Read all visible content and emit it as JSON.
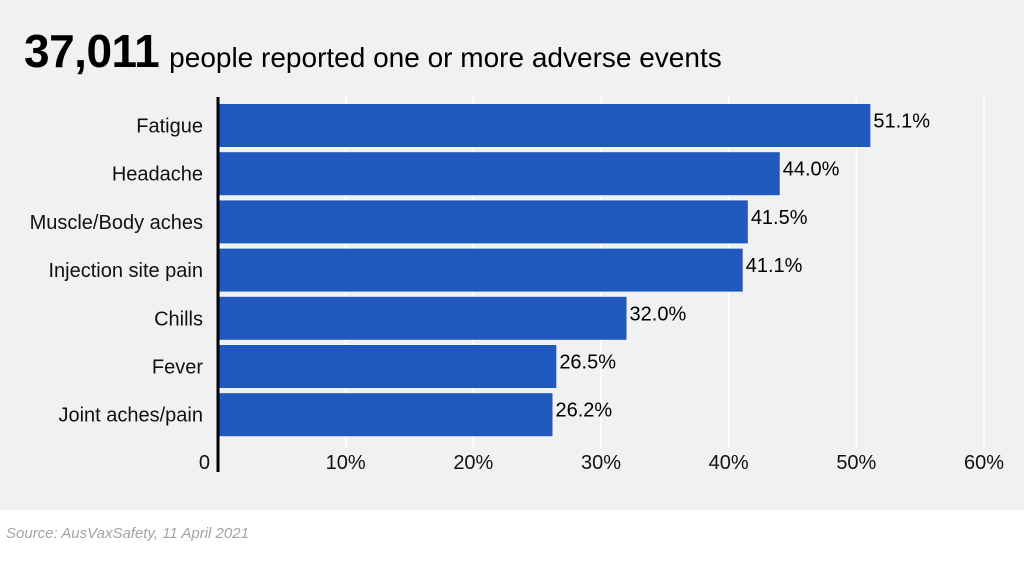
{
  "headline": {
    "number": "37,011",
    "text": "people reported one or more adverse events"
  },
  "source": "Source: AusVaxSafety, 11 April 2021",
  "colors": {
    "bar": "#1f59bd",
    "background": "#f0f1f3",
    "grid": "#ffffff",
    "axis": "#000000",
    "text": "#111111"
  },
  "chart_data": {
    "type": "bar",
    "orientation": "horizontal",
    "categories": [
      "Fatigue",
      "Headache",
      "Muscle/Body aches",
      "Injection site pain",
      "Chills",
      "Fever",
      "Joint aches/pain"
    ],
    "values": [
      51.1,
      44.0,
      41.5,
      41.1,
      32.0,
      26.5,
      26.2
    ],
    "data_labels": [
      "51.1%",
      "44.0%",
      "41.5%",
      "41.1%",
      "32.0%",
      "26.5%",
      "26.2%"
    ],
    "xlim": [
      0,
      60
    ],
    "xticks": [
      0,
      10,
      20,
      30,
      40,
      50,
      60
    ],
    "xtick_labels": [
      "0",
      "10%",
      "20%",
      "30%",
      "40%",
      "50%",
      "60%"
    ],
    "grid": true,
    "title": "",
    "xlabel": "",
    "ylabel": ""
  }
}
